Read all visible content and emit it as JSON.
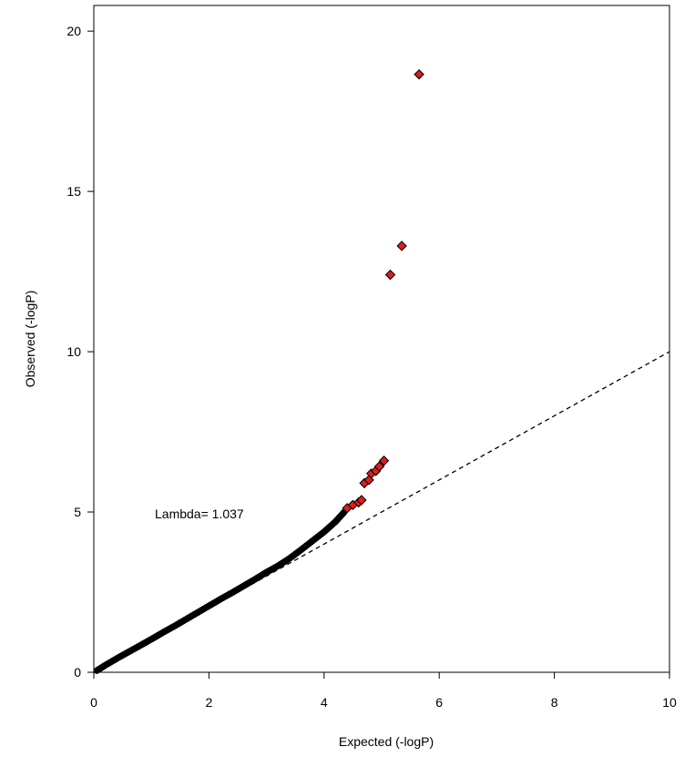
{
  "chart_data": {
    "type": "scatter",
    "title": "",
    "xlabel": "Expected (-logP)",
    "ylabel": "Observed (-logP)",
    "xlim": [
      0,
      10
    ],
    "ylim": [
      0,
      20.8
    ],
    "x_ticks": [
      0,
      2,
      4,
      6,
      8,
      10
    ],
    "y_ticks": [
      0,
      5,
      10,
      15,
      20
    ],
    "grid": false,
    "legend": "none",
    "annotation": "Lambda= 1.037",
    "reference_line": {
      "from": [
        0,
        0
      ],
      "to": [
        10,
        10
      ],
      "style": "dashed"
    },
    "colors": {
      "bulk_points": "#000000",
      "highlight_points": "#d91e1e",
      "highlight_edge": "#000000",
      "reference_line": "#000000"
    },
    "series": [
      {
        "marker": "circle",
        "color": "#000000",
        "points": [
          [
            0.05,
            0.05
          ],
          [
            0.2,
            0.22
          ],
          [
            0.4,
            0.43
          ],
          [
            0.6,
            0.63
          ],
          [
            0.8,
            0.83
          ],
          [
            1.0,
            1.03
          ],
          [
            1.2,
            1.24
          ],
          [
            1.4,
            1.44
          ],
          [
            1.6,
            1.65
          ],
          [
            1.8,
            1.86
          ],
          [
            2.0,
            2.07
          ],
          [
            2.2,
            2.28
          ],
          [
            2.4,
            2.48
          ],
          [
            2.6,
            2.69
          ],
          [
            2.8,
            2.9
          ],
          [
            3.0,
            3.12
          ],
          [
            3.2,
            3.32
          ],
          [
            3.4,
            3.55
          ],
          [
            3.6,
            3.82
          ],
          [
            3.8,
            4.1
          ],
          [
            4.0,
            4.38
          ],
          [
            4.2,
            4.7
          ],
          [
            4.35,
            5.0
          ]
        ]
      },
      {
        "marker": "diamond",
        "color": "#d91e1e",
        "points": [
          [
            4.4,
            5.12
          ],
          [
            4.5,
            5.22
          ],
          [
            4.6,
            5.3
          ],
          [
            4.65,
            5.37
          ],
          [
            4.7,
            5.9
          ],
          [
            4.78,
            6.0
          ],
          [
            4.82,
            6.2
          ],
          [
            4.9,
            6.28
          ],
          [
            4.96,
            6.42
          ],
          [
            5.04,
            6.6
          ],
          [
            5.15,
            12.4
          ],
          [
            5.35,
            13.3
          ],
          [
            5.65,
            18.65
          ]
        ]
      }
    ]
  }
}
